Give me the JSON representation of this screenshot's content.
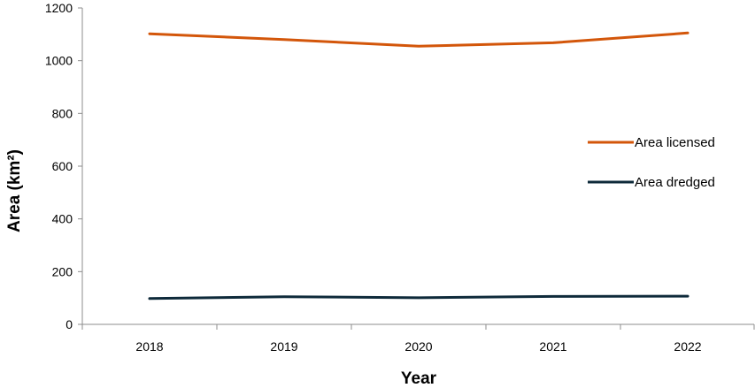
{
  "chart_data": {
    "type": "line",
    "categories": [
      "2018",
      "2019",
      "2020",
      "2021",
      "2022"
    ],
    "series": [
      {
        "name": "Area licensed",
        "values": [
          1102,
          1080,
          1055,
          1068,
          1105
        ],
        "color": "#d3560a"
      },
      {
        "name": "Area dredged",
        "values": [
          98,
          105,
          101,
          106,
          107
        ],
        "color": "#0e2a3a"
      }
    ],
    "xlabel": "Year",
    "ylabel": "Area (km²)",
    "ylim": [
      0,
      1200
    ],
    "yticks": [
      0,
      200,
      400,
      600,
      800,
      1000,
      1200
    ],
    "grid": false,
    "legend": "right"
  }
}
